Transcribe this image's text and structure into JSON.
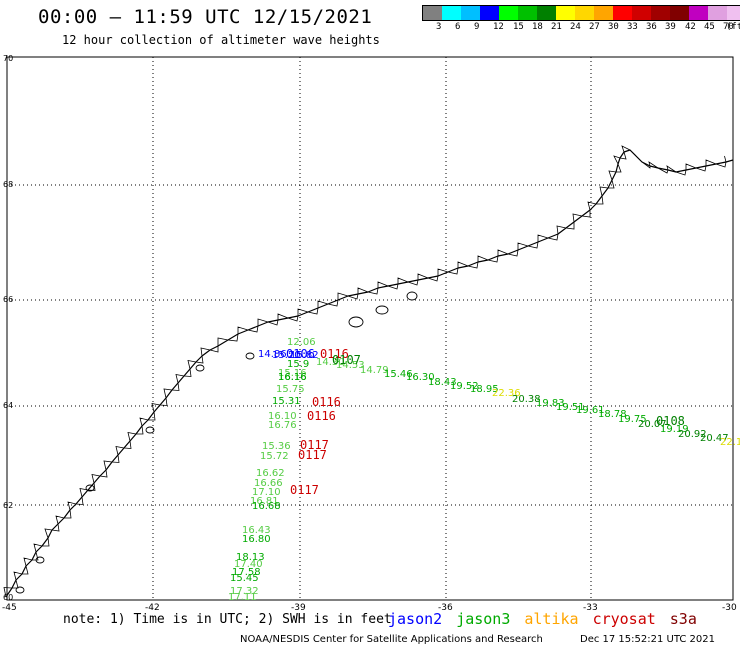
{
  "header": {
    "title": "00:00 – 11:59 UTC 12/15/2021",
    "subtitle": "12 hour collection of altimeter wave heights"
  },
  "legend": {
    "units": "(ft)",
    "colors": [
      "#808080",
      "#00ffff",
      "#00bfff",
      "#0000ff",
      "#00ff00",
      "#00c000",
      "#008000",
      "#ffff00",
      "#ffd700",
      "#ffa500",
      "#ff0000",
      "#d00000",
      "#a00000",
      "#800000",
      "#c000c0",
      "#e0a0e0",
      "#f0c0f0",
      "#000000"
    ],
    "values": [
      "3",
      "6",
      "9",
      "12",
      "15",
      "18",
      "21",
      "24",
      "27",
      "30",
      "33",
      "36",
      "39",
      "42",
      "45",
      "70"
    ]
  },
  "map": {
    "lat_labels": [
      "70",
      "68",
      "66",
      "64",
      "62",
      "60"
    ],
    "lon_labels": [
      "-45",
      "-42",
      "-39",
      "-36",
      "-33",
      "-30"
    ],
    "track_labels": [
      {
        "text": "12.06",
        "color": "#55cc44"
      },
      {
        "text": "14.86",
        "color": "#0000ff"
      },
      {
        "text": "15.20",
        "color": "#0000ff"
      },
      {
        "text": "15.82",
        "color": "#0000ff"
      },
      {
        "text": "15.9",
        "color": "#00aa00"
      },
      {
        "text": "16.16",
        "color": "#00aa00"
      },
      {
        "text": "15.16",
        "color": "#55cc44"
      },
      {
        "text": "16.16",
        "color": "#00aa00"
      },
      {
        "text": "15.75",
        "color": "#55cc44"
      },
      {
        "text": "15.31",
        "color": "#00aa00"
      },
      {
        "text": "16.10",
        "color": "#55cc44"
      },
      {
        "text": "16.76",
        "color": "#55cc44"
      },
      {
        "text": "15.36",
        "color": "#55cc44"
      },
      {
        "text": "15.72",
        "color": "#55cc44"
      },
      {
        "text": "16.62",
        "color": "#55cc44"
      },
      {
        "text": "16.66",
        "color": "#55cc44"
      },
      {
        "text": "17.10",
        "color": "#55cc44"
      },
      {
        "text": "16.81",
        "color": "#55cc44"
      },
      {
        "text": "16.68",
        "color": "#00aa00"
      },
      {
        "text": "16.43",
        "color": "#55cc44"
      },
      {
        "text": "16.80",
        "color": "#00aa00"
      },
      {
        "text": "18.13",
        "color": "#00aa00"
      },
      {
        "text": "17.40",
        "color": "#55cc44"
      },
      {
        "text": "17.58",
        "color": "#00aa00"
      },
      {
        "text": "15.45",
        "color": "#00aa00"
      },
      {
        "text": "17.32",
        "color": "#55cc44"
      },
      {
        "text": "17.11",
        "color": "#55cc44"
      },
      {
        "text": "14.30",
        "color": "#55cc44"
      },
      {
        "text": "14.53",
        "color": "#55cc44"
      },
      {
        "text": "14.79",
        "color": "#55cc44"
      },
      {
        "text": "15.46",
        "color": "#00aa00"
      },
      {
        "text": "16.30",
        "color": "#00aa00"
      },
      {
        "text": "18.43",
        "color": "#00aa00"
      },
      {
        "text": "19.52",
        "color": "#00aa00"
      },
      {
        "text": "18.95",
        "color": "#00aa00"
      },
      {
        "text": "22.36",
        "color": "#dddd00"
      },
      {
        "text": "20.38",
        "color": "#008000"
      },
      {
        "text": "19.83",
        "color": "#00aa00"
      },
      {
        "text": "19.51",
        "color": "#00aa00"
      },
      {
        "text": "19.61",
        "color": "#00aa00"
      },
      {
        "text": "18.78",
        "color": "#00aa00"
      },
      {
        "text": "19.75",
        "color": "#00aa00"
      },
      {
        "text": "20.07",
        "color": "#008000"
      },
      {
        "text": "19.19",
        "color": "#00aa00"
      },
      {
        "text": "20.92",
        "color": "#008000"
      },
      {
        "text": "20.47",
        "color": "#008000"
      },
      {
        "text": "22.1",
        "color": "#dddd00"
      }
    ],
    "time_labels": [
      {
        "text": "0106",
        "color": "#0000ff"
      },
      {
        "text": "0116",
        "color": "#cc0000"
      },
      {
        "text": "0107",
        "color": "#008000"
      },
      {
        "text": "0116",
        "color": "#cc0000"
      },
      {
        "text": "0116",
        "color": "#cc0000"
      },
      {
        "text": "0117",
        "color": "#cc0000"
      },
      {
        "text": "0117",
        "color": "#cc0000"
      },
      {
        "text": "0117",
        "color": "#cc0000"
      },
      {
        "text": "0108",
        "color": "#008000"
      }
    ]
  },
  "footer": {
    "note": "note: 1) Time is in UTC; 2) SWH is in feet",
    "satellites": [
      {
        "name": "jason2",
        "color": "#0000ff"
      },
      {
        "name": "jason3",
        "color": "#00aa00"
      },
      {
        "name": "altika",
        "color": "#ffa500"
      },
      {
        "name": "cryosat",
        "color": "#cc0000"
      },
      {
        "name": "s3a",
        "color": "#800000"
      }
    ],
    "credit": "NOAA/NESDIS Center for Satellite Applications and Research",
    "timestamp": "Dec 17 15:52:21 UTC 2021"
  }
}
